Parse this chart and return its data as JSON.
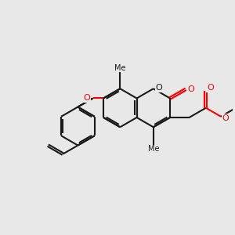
{
  "bg_color": "#e8e8e8",
  "bond_color": "#1a1a1a",
  "oxygen_color": "#ff0000",
  "line_width": 1.5,
  "dbo": 0.055,
  "figsize": [
    3.0,
    3.0
  ],
  "dpi": 100,
  "xlim": [
    0,
    12
  ],
  "ylim": [
    0,
    12
  ]
}
